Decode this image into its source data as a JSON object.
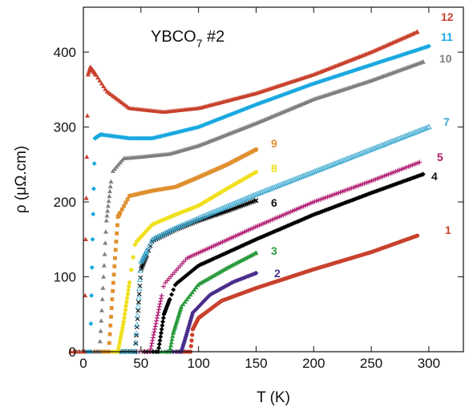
{
  "chart_data": {
    "type": "scatter",
    "title": "",
    "annotation": {
      "main": "YBCO",
      "sub": "7",
      "suffix": " #2"
    },
    "xlabel": "T (K)",
    "ylabel": "ρ (μΩ.cm)",
    "xlim": [
      0,
      330
    ],
    "ylim": [
      0,
      460
    ],
    "xticks": [
      0,
      50,
      100,
      150,
      200,
      250,
      300
    ],
    "yticks": [
      0,
      100,
      200,
      300,
      400
    ],
    "grid": false,
    "series": [
      {
        "name": "1",
        "color": "#c8412c",
        "marker": "circle",
        "tc": 93,
        "x": [
          93,
          95,
          100,
          120,
          150,
          200,
          250,
          290
        ],
        "y": [
          0,
          30,
          45,
          68,
          85,
          110,
          133,
          155
        ]
      },
      {
        "name": "2",
        "color": "#4a2c8c",
        "marker": "diamond",
        "tc": 85,
        "x": [
          85,
          88,
          95,
          110,
          130,
          150
        ],
        "y": [
          0,
          15,
          52,
          76,
          93,
          105
        ]
      },
      {
        "name": "3",
        "color": "#2a9a3c",
        "marker": "triangle",
        "tc": 75,
        "x": [
          75,
          78,
          85,
          100,
          125,
          150
        ],
        "y": [
          0,
          25,
          60,
          90,
          112,
          132
        ]
      },
      {
        "name": "4",
        "color": "#000000",
        "marker": "diamond",
        "tc": 65,
        "x": [
          65,
          70,
          80,
          100,
          150,
          200,
          250,
          295
        ],
        "y": [
          0,
          50,
          90,
          115,
          150,
          183,
          212,
          237
        ]
      },
      {
        "name": "5",
        "color": "#b01870",
        "marker": "plus",
        "tc": 58,
        "x": [
          58,
          62,
          70,
          90,
          150,
          200,
          250,
          292
        ],
        "y": [
          0,
          30,
          90,
          125,
          167,
          200,
          228,
          253
        ]
      },
      {
        "name": "6",
        "color": "#000000",
        "marker": "cross",
        "tc": 45,
        "x": [
          45,
          50,
          60,
          80,
          100,
          125,
          150
        ],
        "y": [
          0,
          110,
          148,
          163,
          175,
          188,
          202
        ]
      },
      {
        "name": "7",
        "color": "#3aa8d0",
        "marker": "triangle-open",
        "tc": 45,
        "x": [
          45,
          50,
          60,
          80,
          100,
          150,
          200,
          250,
          300
        ],
        "y": [
          0,
          120,
          150,
          165,
          178,
          210,
          240,
          270,
          300
        ]
      },
      {
        "name": "8",
        "color": "#f0e020",
        "marker": "circle",
        "tc": 30,
        "x": [
          30,
          35,
          45,
          60,
          80,
          100,
          125,
          150
        ],
        "y": [
          0,
          40,
          145,
          170,
          183,
          195,
          218,
          240
        ]
      },
      {
        "name": "9",
        "color": "#e09030",
        "marker": "square",
        "tc": 22,
        "x": [
          22,
          25,
          30,
          40,
          60,
          80,
          100,
          125,
          150
        ],
        "y": [
          0,
          70,
          180,
          208,
          215,
          220,
          233,
          250,
          270
        ]
      },
      {
        "name": "10",
        "color": "#808080",
        "marker": "triangle",
        "tc": 14,
        "x": [
          14,
          16,
          20,
          25,
          35,
          50,
          75,
          100,
          150,
          200,
          250,
          295
        ],
        "y": [
          0,
          55,
          175,
          240,
          258,
          260,
          264,
          275,
          305,
          337,
          362,
          387
        ]
      },
      {
        "name": "11",
        "color": "#19a8e0",
        "marker": "diamond",
        "tc": 6,
        "x": [
          6,
          8,
          10,
          15,
          25,
          40,
          60,
          100,
          150,
          200,
          250,
          300
        ],
        "y": [
          0,
          150,
          285,
          290,
          288,
          285,
          285,
          300,
          330,
          358,
          383,
          408
        ]
      },
      {
        "name": "12",
        "color": "#c8412c",
        "marker": "triangle",
        "tc": 1,
        "x": [
          1,
          2,
          4,
          6,
          10,
          20,
          40,
          70,
          100,
          150,
          200,
          250,
          290
        ],
        "y": [
          0,
          150,
          370,
          380,
          372,
          348,
          325,
          320,
          325,
          345,
          370,
          400,
          427
        ]
      }
    ]
  }
}
